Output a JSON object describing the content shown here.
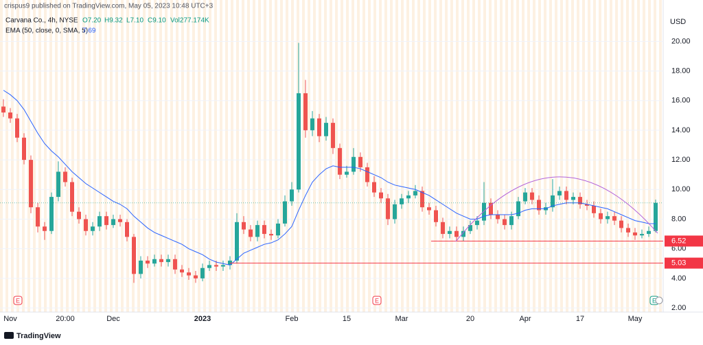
{
  "chart_data": {
    "type": "candlestick",
    "header": {
      "published": "crispus9 published on TradingView.com, May 05, 2023 10:48 UTC+3",
      "symbol": "Carvana Co., 4h, NYSE",
      "ohlcv": [
        "O7.20",
        "H9.32",
        "L7.10",
        "C9.10",
        "Vol277.174K"
      ]
    },
    "currency": "USD",
    "footer": "TradingView",
    "earnings_marks": [
      "E",
      "E",
      "E"
    ],
    "categories": [
      null,
      "Nov",
      null,
      null,
      null,
      null,
      null,
      null,
      null,
      "20:00",
      null,
      null,
      null,
      null,
      null,
      null,
      "Dec",
      null,
      null,
      null,
      null,
      null,
      null,
      null,
      null,
      null,
      null,
      null,
      null,
      "2023",
      null,
      null,
      null,
      null,
      null,
      null,
      null,
      null,
      null,
      null,
      null,
      null,
      "Feb",
      null,
      null,
      null,
      null,
      null,
      null,
      null,
      "15",
      null,
      null,
      null,
      null,
      null,
      null,
      null,
      "Mar",
      null,
      null,
      null,
      null,
      null,
      null,
      null,
      null,
      null,
      "20",
      null,
      null,
      null,
      null,
      null,
      null,
      null,
      "Apr",
      null,
      null,
      null,
      null,
      null,
      null,
      null,
      "17",
      null,
      null,
      null,
      null,
      null,
      null,
      null,
      "May",
      null,
      null,
      null
    ],
    "open": [
      15.6,
      15.2,
      14.8,
      13.5,
      12.0,
      8.8,
      7.5,
      7.2,
      9.5,
      11.2,
      10.5,
      8.5,
      8.0,
      7.2,
      7.5,
      8.2,
      7.6,
      8.0,
      7.8,
      6.8,
      4.3,
      5.2,
      5.0,
      5.3,
      5.1,
      5.3,
      4.6,
      4.4,
      4.2,
      4.0,
      4.7,
      4.9,
      4.8,
      4.9,
      5.2,
      7.8,
      7.3,
      6.8,
      7.6,
      7.0,
      6.9,
      7.7,
      9.2,
      10.0,
      16.5,
      14.0,
      14.8,
      13.6,
      14.5,
      12.8,
      11.0,
      11.2,
      12.2,
      11.5,
      10.5,
      9.8,
      9.4,
      8.0,
      9.0,
      9.4,
      9.6,
      9.9,
      8.8,
      8.6,
      7.8,
      7.0,
      7.2,
      6.8,
      7.2,
      7.6,
      7.9,
      9.1,
      8.3,
      8.0,
      7.6,
      8.2,
      9.2,
      9.8,
      9.3,
      8.6,
      8.8,
      9.6,
      9.9,
      9.3,
      9.5,
      9.0,
      8.9,
      8.4,
      8.0,
      8.2,
      7.9,
      7.4,
      7.1,
      6.9,
      7.0,
      7.2
    ],
    "high": [
      16.1,
      15.5,
      15.1,
      13.8,
      12.3,
      9.1,
      7.8,
      9.8,
      11.9,
      11.5,
      10.8,
      8.8,
      8.3,
      7.8,
      8.5,
      8.5,
      8.3,
      8.3,
      8.0,
      7.0,
      5.5,
      5.5,
      5.6,
      5.6,
      5.6,
      5.6,
      4.9,
      4.7,
      4.5,
      5.0,
      5.2,
      5.2,
      5.2,
      5.5,
      8.4,
      8.2,
      7.6,
      7.9,
      7.9,
      7.3,
      8.0,
      9.6,
      10.5,
      19.9,
      17.4,
      15.3,
      15.1,
      14.9,
      14.8,
      13.1,
      11.6,
      12.8,
      12.5,
      11.8,
      10.9,
      10.1,
      9.7,
      9.3,
      9.7,
      9.9,
      10.3,
      10.2,
      9.1,
      8.9,
      8.1,
      7.5,
      7.5,
      7.5,
      7.9,
      8.2,
      10.5,
      9.4,
      8.6,
      8.3,
      8.5,
      9.5,
      10.1,
      10.1,
      9.6,
      9.1,
      10.7,
      10.2,
      10.2,
      9.8,
      9.8,
      9.3,
      9.2,
      8.7,
      8.5,
      8.5,
      8.2,
      7.7,
      7.4,
      7.3,
      7.5,
      9.32
    ],
    "low": [
      14.9,
      14.5,
      13.2,
      11.7,
      8.4,
      7.1,
      6.6,
      7.0,
      9.2,
      10.2,
      8.2,
      7.7,
      6.9,
      6.9,
      7.2,
      7.3,
      7.4,
      7.5,
      6.5,
      3.7,
      4.0,
      4.7,
      4.8,
      4.8,
      4.8,
      4.3,
      4.1,
      3.9,
      3.7,
      3.8,
      4.5,
      4.5,
      4.5,
      4.6,
      5.0,
      7.0,
      6.5,
      6.5,
      6.7,
      6.6,
      6.7,
      7.5,
      8.9,
      9.8,
      13.5,
      13.6,
      13.2,
      13.3,
      12.4,
      10.7,
      10.8,
      11.0,
      11.2,
      10.2,
      9.5,
      9.1,
      7.6,
      7.7,
      8.7,
      9.1,
      9.4,
      8.5,
      8.3,
      7.5,
      6.7,
      6.7,
      6.5,
      6.5,
      7.0,
      7.3,
      7.6,
      8.0,
      7.7,
      7.3,
      7.3,
      8.0,
      9.0,
      9.0,
      8.3,
      8.3,
      8.5,
      9.3,
      9.0,
      9.0,
      8.7,
      8.6,
      8.1,
      7.7,
      7.7,
      7.6,
      7.1,
      6.8,
      6.6,
      6.7,
      6.8,
      7.1
    ],
    "close": [
      15.2,
      14.8,
      13.5,
      12.0,
      8.8,
      7.5,
      7.2,
      9.5,
      11.2,
      10.5,
      8.5,
      8.0,
      7.2,
      7.5,
      8.2,
      7.6,
      8.0,
      7.8,
      6.8,
      4.3,
      5.2,
      5.0,
      5.3,
      5.1,
      5.3,
      4.6,
      4.4,
      4.2,
      4.0,
      4.7,
      4.9,
      4.8,
      4.9,
      5.2,
      7.8,
      7.3,
      6.8,
      7.6,
      7.0,
      6.9,
      7.7,
      9.2,
      10.0,
      16.5,
      14.0,
      14.8,
      13.6,
      14.5,
      12.8,
      11.0,
      11.2,
      12.2,
      11.5,
      10.5,
      9.8,
      9.4,
      8.0,
      9.0,
      9.4,
      9.6,
      9.9,
      8.8,
      8.6,
      7.8,
      7.0,
      7.2,
      6.8,
      7.2,
      7.6,
      7.9,
      9.1,
      8.3,
      8.0,
      7.6,
      8.2,
      9.2,
      9.8,
      9.3,
      8.6,
      8.8,
      9.6,
      9.9,
      9.3,
      9.5,
      9.0,
      8.9,
      8.4,
      8.0,
      8.2,
      7.9,
      7.4,
      7.1,
      6.9,
      7.0,
      7.2,
      9.1
    ],
    "up_color": "#26a69a",
    "down_color": "#ef5350",
    "series": [
      {
        "name": "EMA (50, close, 0, SMA, 5)",
        "color": "#2962ff",
        "values": [
          16.7,
          16.4,
          16.0,
          15.4,
          14.6,
          13.8,
          13.1,
          12.6,
          12.2,
          11.7,
          11.2,
          10.8,
          10.4,
          10.1,
          9.8,
          9.5,
          9.2,
          9.0,
          8.7,
          8.2,
          7.8,
          7.4,
          7.1,
          6.9,
          6.7,
          6.5,
          6.3,
          6.0,
          5.8,
          5.6,
          5.3,
          5.1,
          5.0,
          4.9,
          5.3,
          5.7,
          5.9,
          6.1,
          6.3,
          6.4,
          6.6,
          7.0,
          7.5,
          8.6,
          9.6,
          10.5,
          11.0,
          11.4,
          11.6,
          11.5,
          11.5,
          11.5,
          11.4,
          11.2,
          11.0,
          10.8,
          10.5,
          10.3,
          10.2,
          10.1,
          10.0,
          9.8,
          9.6,
          9.3,
          9.0,
          8.7,
          8.4,
          8.2,
          8.0,
          8.0,
          8.2,
          8.3,
          8.3,
          8.3,
          8.3,
          8.4,
          8.6,
          8.7,
          8.7,
          8.7,
          8.9,
          9.0,
          9.1,
          9.1,
          9.1,
          9.0,
          8.9,
          8.8,
          8.7,
          8.5,
          8.3,
          8.1,
          7.9,
          7.8,
          7.7,
          7.69
        ]
      }
    ],
    "levels": [
      6.52,
      5.03
    ],
    "level_color": "#f23645",
    "ylim": [
      1.4,
      22.1
    ],
    "yticks": [
      {
        "value": 2,
        "label": "2.00"
      },
      {
        "value": 4,
        "label": "4.00"
      },
      {
        "value": 6,
        "label": "6.00"
      },
      {
        "value": 8,
        "label": "8.00"
      },
      {
        "value": 10,
        "label": "10.00"
      },
      {
        "value": 12,
        "label": "12.00"
      },
      {
        "value": 14,
        "label": "14.00"
      },
      {
        "value": 16,
        "label": "16.00"
      },
      {
        "value": 18,
        "label": "18.00"
      },
      {
        "value": 20,
        "label": "20.00"
      }
    ]
  }
}
